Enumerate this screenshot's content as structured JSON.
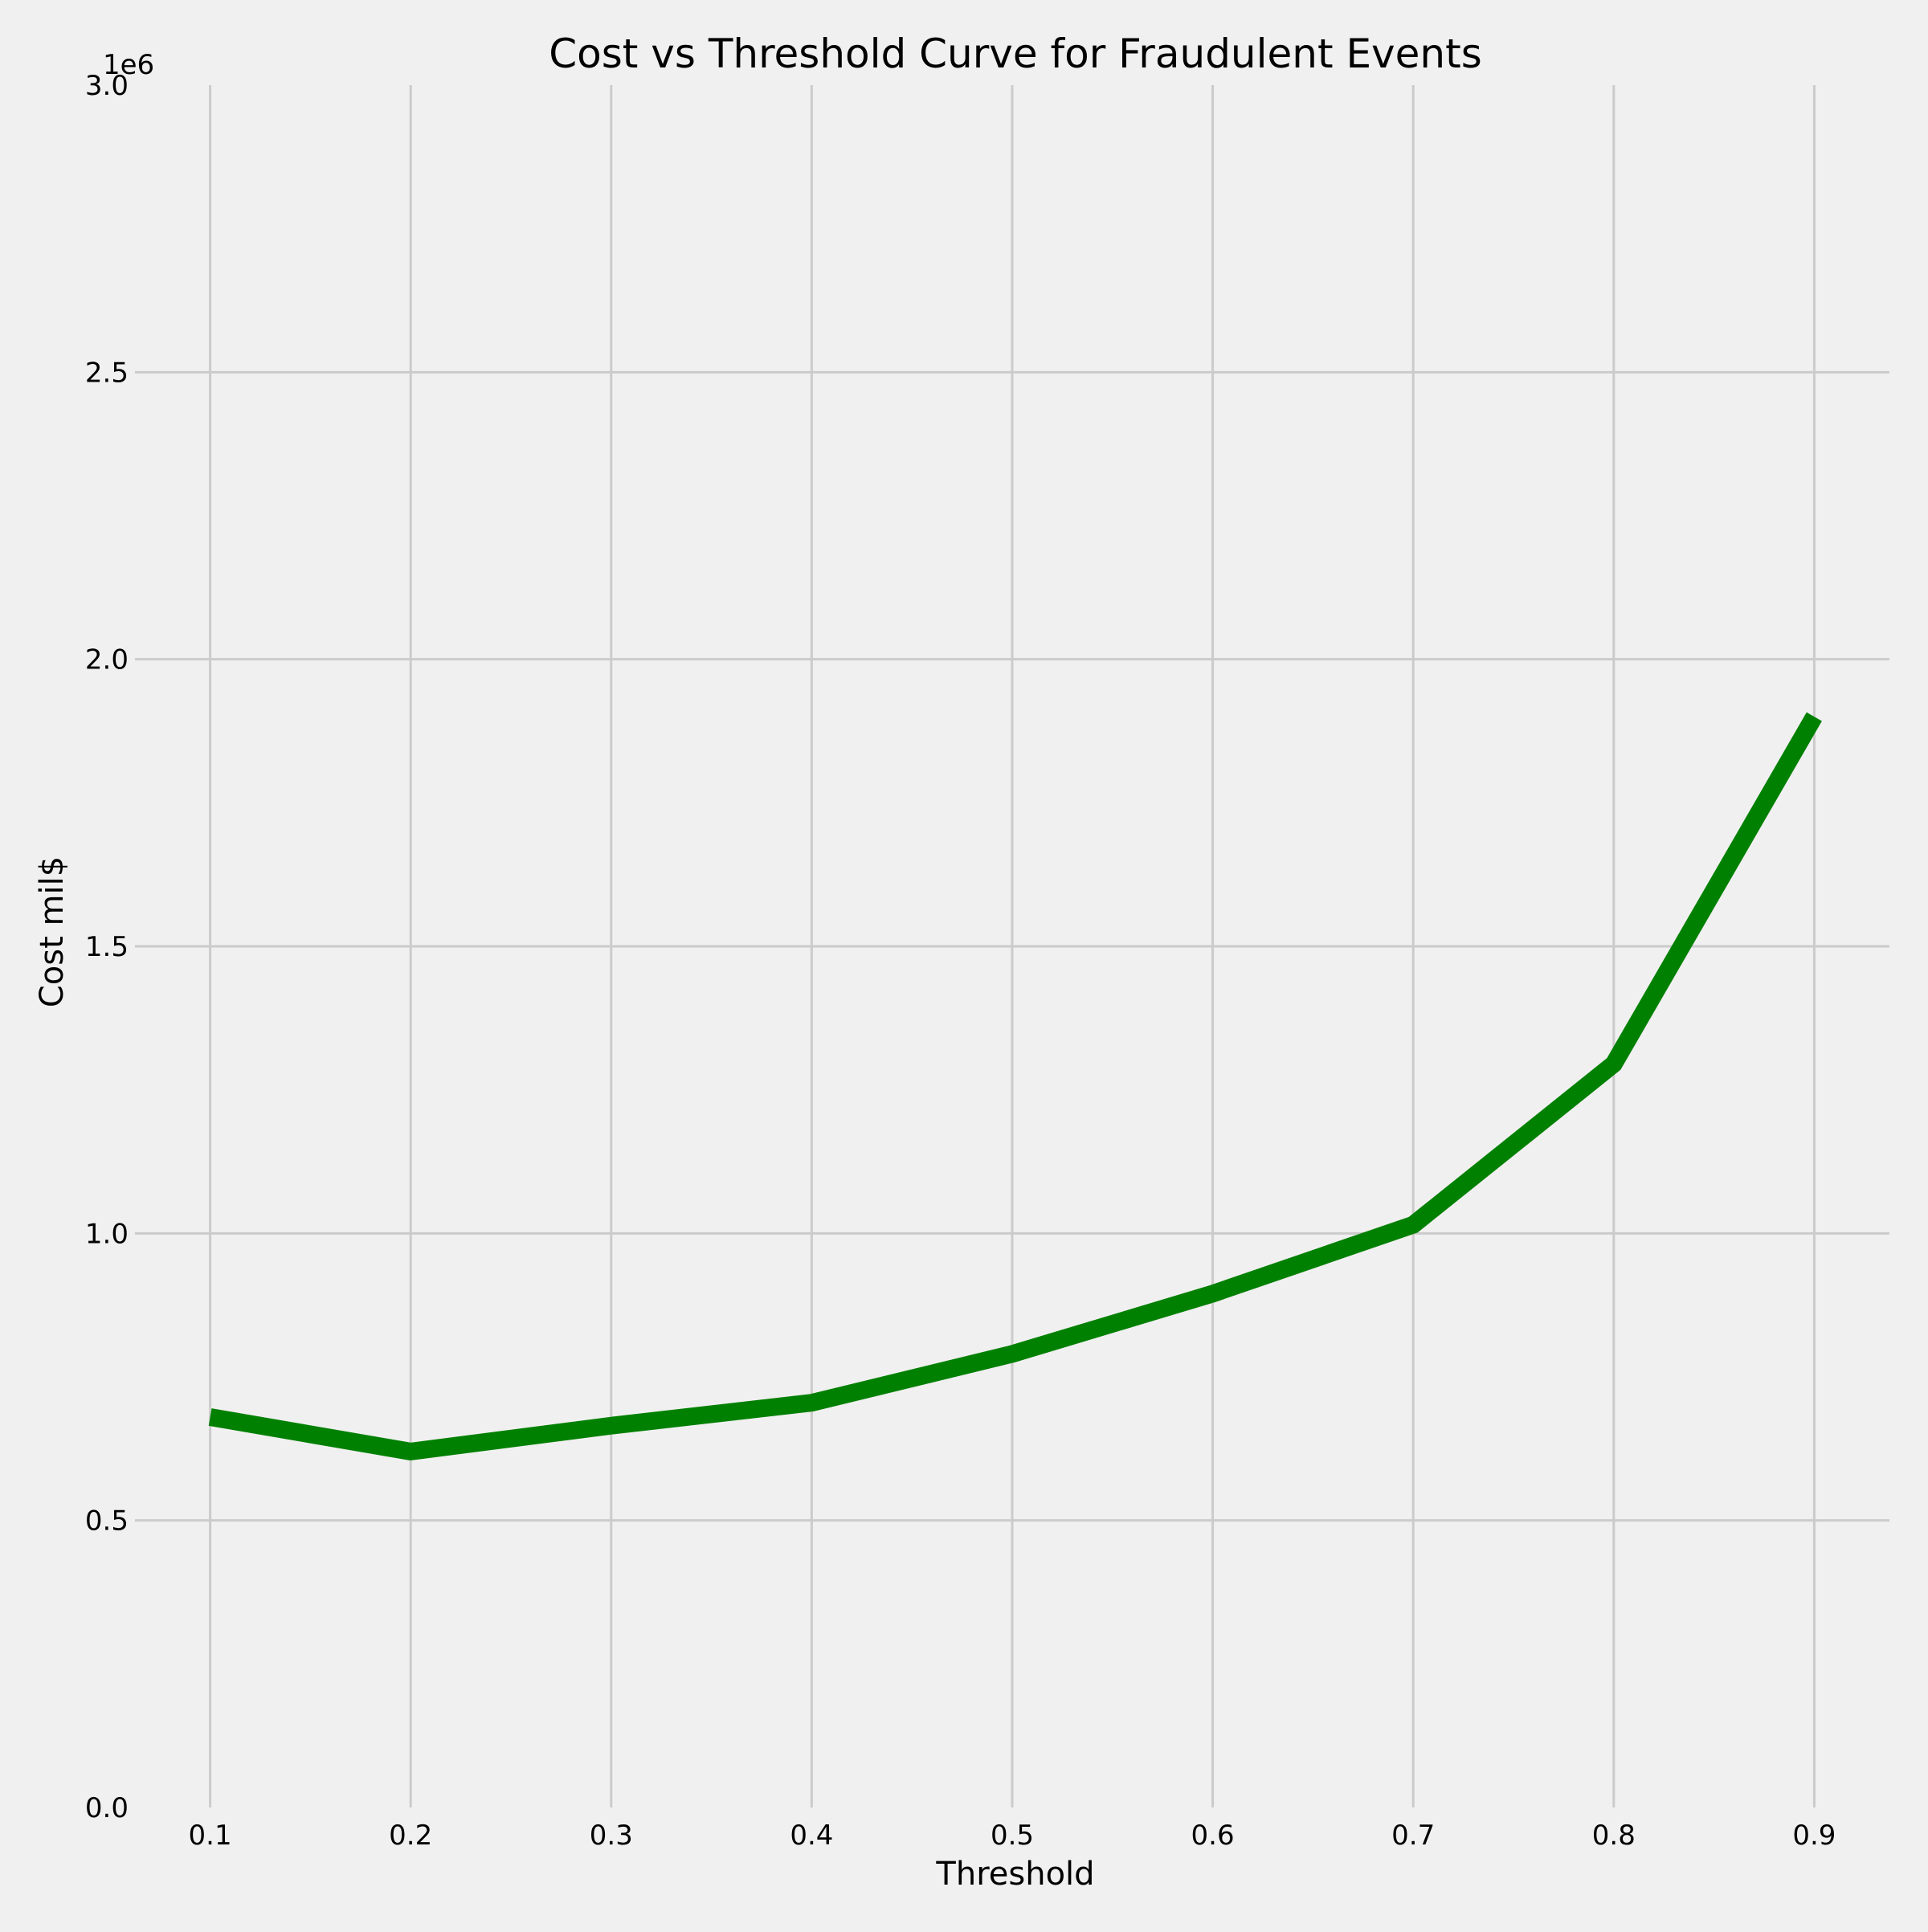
{
  "chart_data": {
    "type": "line",
    "title": "Cost vs Threshold Curve for Fraudulent Events",
    "xlabel": "Threshold",
    "ylabel": "Cost mil$",
    "y_offset_text": "1e6",
    "x": [
      0.1,
      0.2,
      0.3,
      0.4,
      0.5,
      0.6,
      0.7,
      0.8,
      0.9
    ],
    "series": [
      {
        "values": [
          680000,
          620000,
          665000,
          705000,
          790000,
          895000,
          1015000,
          1295000,
          1900000
        ],
        "color": "#008000"
      }
    ],
    "xlim": [
      0.0625,
      0.9375
    ],
    "ylim": [
      0,
      3000000
    ],
    "x_ticks": [
      {
        "value": 0.1,
        "label": "0.1"
      },
      {
        "value": 0.2,
        "label": "0.2"
      },
      {
        "value": 0.3,
        "label": "0.3"
      },
      {
        "value": 0.4,
        "label": "0.4"
      },
      {
        "value": 0.5,
        "label": "0.5"
      },
      {
        "value": 0.6,
        "label": "0.6"
      },
      {
        "value": 0.7,
        "label": "0.7"
      },
      {
        "value": 0.8,
        "label": "0.8"
      },
      {
        "value": 0.9,
        "label": "0.9"
      }
    ],
    "y_ticks": [
      {
        "value": 0,
        "label": "0.0"
      },
      {
        "value": 500000,
        "label": "0.5"
      },
      {
        "value": 1000000,
        "label": "1.0"
      },
      {
        "value": 1500000,
        "label": "1.5"
      },
      {
        "value": 2000000,
        "label": "2.0"
      },
      {
        "value": 2500000,
        "label": "2.5"
      },
      {
        "value": 3000000,
        "label": "3.0"
      }
    ],
    "grid": true,
    "background_color": "#f0f0f0",
    "grid_color": "#cbcbcb"
  }
}
